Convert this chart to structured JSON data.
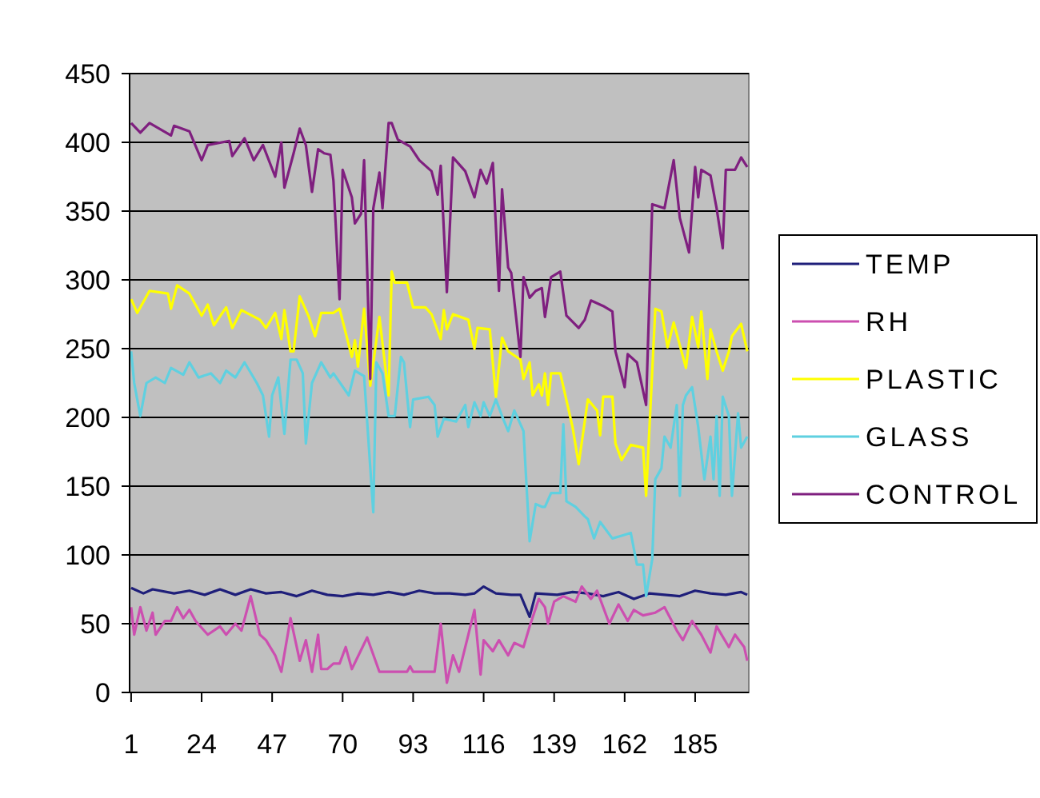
{
  "chart_data": {
    "type": "line",
    "xlim": [
      0.5,
      202.5
    ],
    "xticks": [
      1,
      24,
      47,
      70,
      93,
      116,
      139,
      162,
      185
    ],
    "ylim": [
      0,
      450
    ],
    "yticks": [
      0,
      50,
      100,
      150,
      200,
      250,
      300,
      350,
      400,
      450
    ],
    "grid": "y",
    "legend": "right",
    "marker": "none",
    "line_style": "solid",
    "series": [
      {
        "name": "TEMP",
        "color": "#1f1f7a",
        "x": [
          1,
          5,
          8,
          15,
          20,
          25,
          30,
          35,
          40,
          45,
          50,
          55,
          60,
          65,
          70,
          75,
          80,
          85,
          90,
          95,
          100,
          105,
          110,
          113,
          116,
          120,
          125,
          128,
          131,
          133,
          140,
          145,
          150,
          155,
          160,
          165,
          170,
          175,
          180,
          185,
          190,
          195,
          200,
          202
        ],
        "values": [
          76,
          72,
          75,
          72,
          74,
          71,
          75,
          71,
          75,
          72,
          73,
          70,
          74,
          71,
          70,
          72,
          71,
          73,
          71,
          74,
          72,
          72,
          71,
          72,
          77,
          72,
          71,
          71,
          55,
          72,
          71,
          73,
          72,
          70,
          73,
          68,
          72,
          71,
          70,
          74,
          72,
          71,
          73,
          71
        ]
      },
      {
        "name": "RH",
        "color": "#cc4fb0",
        "x": [
          1,
          2,
          4,
          6,
          8,
          9,
          12,
          14,
          16,
          18,
          20,
          22,
          26,
          30,
          32,
          35,
          37,
          40,
          43,
          45,
          48,
          50,
          53,
          56,
          58,
          60,
          62,
          63,
          65,
          67,
          69,
          71,
          73,
          78,
          82,
          91,
          92,
          93,
          100,
          102,
          104,
          106,
          108,
          111,
          113,
          115,
          116,
          119,
          121,
          124,
          126,
          129,
          131,
          134,
          136,
          137,
          139,
          142,
          146,
          148,
          151,
          153,
          157,
          160,
          163,
          165,
          168,
          172,
          175,
          179,
          181,
          184,
          187,
          190,
          192,
          196,
          198,
          201,
          202
        ],
        "values": [
          62,
          42,
          62,
          45,
          58,
          42,
          52,
          52,
          62,
          54,
          60,
          52,
          42,
          48,
          42,
          50,
          45,
          70,
          42,
          38,
          27,
          15,
          54,
          23,
          38,
          15,
          42,
          17,
          17,
          21,
          21,
          33,
          17,
          40,
          15,
          15,
          19,
          15,
          15,
          50,
          7,
          27,
          15,
          42,
          60,
          13,
          38,
          30,
          38,
          27,
          36,
          33,
          48,
          68,
          62,
          50,
          66,
          70,
          66,
          77,
          68,
          74,
          50,
          64,
          52,
          60,
          56,
          58,
          62,
          45,
          38,
          52,
          42,
          29,
          48,
          33,
          42,
          33,
          23
        ]
      },
      {
        "name": "PLASTIC",
        "color": "#ffff00",
        "x": [
          1,
          3,
          7,
          13,
          14,
          16,
          20,
          24,
          26,
          28,
          32,
          34,
          37,
          43,
          45,
          48,
          50,
          51,
          53,
          54,
          56,
          59,
          61,
          63,
          67,
          69,
          73,
          74,
          75,
          77,
          79,
          82,
          85,
          86,
          87,
          91,
          93,
          97,
          99,
          102,
          103,
          104,
          106,
          111,
          113,
          114,
          118,
          120,
          122,
          124,
          128,
          129,
          131,
          132,
          134,
          135,
          136,
          137,
          138,
          141,
          145,
          147,
          150,
          153,
          154,
          155,
          158,
          159,
          161,
          164,
          168,
          169,
          172,
          174,
          176,
          178,
          182,
          184,
          186,
          187,
          189,
          190,
          192,
          194,
          196,
          197,
          200,
          202
        ],
        "values": [
          286,
          276,
          292,
          290,
          279,
          296,
          290,
          274,
          282,
          267,
          280,
          265,
          278,
          271,
          265,
          276,
          257,
          278,
          248,
          248,
          288,
          273,
          259,
          276,
          276,
          279,
          244,
          256,
          237,
          279,
          223,
          273,
          216,
          306,
          298,
          298,
          280,
          280,
          275,
          257,
          278,
          264,
          275,
          271,
          250,
          265,
          264,
          215,
          258,
          248,
          242,
          228,
          240,
          216,
          224,
          216,
          232,
          209,
          232,
          232,
          193,
          166,
          213,
          205,
          187,
          215,
          215,
          181,
          169,
          180,
          178,
          143,
          279,
          277,
          251,
          269,
          236,
          273,
          251,
          277,
          228,
          264,
          248,
          234,
          248,
          259,
          268,
          248
        ]
      },
      {
        "name": "GLASS",
        "color": "#5fd0e0",
        "x": [
          1,
          2,
          4,
          6,
          9,
          12,
          14,
          18,
          20,
          23,
          27,
          30,
          32,
          35,
          38,
          42,
          44,
          46,
          47,
          49,
          51,
          53,
          55,
          57,
          58,
          60,
          63,
          66,
          67,
          72,
          74,
          77,
          80,
          81,
          83,
          85,
          87,
          89,
          90,
          92,
          93,
          98,
          100,
          101,
          103,
          107,
          110,
          111,
          113,
          115,
          116,
          118,
          120,
          122,
          124,
          126,
          129,
          131,
          133,
          135,
          136,
          138,
          141,
          142,
          143,
          146,
          149,
          150,
          152,
          154,
          158,
          161,
          164,
          166,
          168,
          169,
          171,
          172,
          174,
          175,
          177,
          179,
          180,
          181,
          182,
          184,
          186,
          188,
          190,
          191,
          192,
          193,
          194,
          196,
          197,
          199,
          200,
          202
        ],
        "values": [
          248,
          225,
          201,
          225,
          229,
          225,
          236,
          231,
          240,
          229,
          232,
          225,
          234,
          229,
          240,
          225,
          216,
          186,
          216,
          229,
          188,
          242,
          242,
          232,
          181,
          225,
          240,
          229,
          232,
          216,
          234,
          230,
          131,
          240,
          232,
          201,
          201,
          244,
          240,
          193,
          213,
          215,
          209,
          186,
          199,
          197,
          209,
          193,
          211,
          201,
          211,
          201,
          213,
          201,
          190,
          205,
          190,
          110,
          137,
          135,
          135,
          145,
          145,
          195,
          139,
          135,
          128,
          126,
          112,
          124,
          112,
          114,
          116,
          93,
          93,
          70,
          97,
          155,
          163,
          186,
          178,
          209,
          143,
          209,
          216,
          222,
          193,
          155,
          186,
          155,
          201,
          143,
          215,
          201,
          143,
          203,
          178,
          186
        ]
      },
      {
        "name": "CONTROL",
        "color": "#7f1f7f",
        "x": [
          1,
          4,
          7,
          14,
          15,
          20,
          24,
          26,
          33,
          34,
          38,
          41,
          44,
          48,
          50,
          51,
          54,
          56,
          58,
          60,
          62,
          64,
          66,
          67,
          69,
          70,
          73,
          74,
          76,
          77,
          79,
          80,
          82,
          83,
          85,
          86,
          88,
          92,
          95,
          99,
          101,
          102,
          104,
          106,
          110,
          113,
          115,
          117,
          119,
          121,
          122,
          124,
          125,
          128,
          129,
          131,
          133,
          135,
          136,
          138,
          141,
          143,
          147,
          149,
          151,
          155,
          158,
          159,
          162,
          163,
          166,
          169,
          171,
          175,
          178,
          180,
          183,
          185,
          186,
          187,
          190,
          192,
          194,
          195,
          198,
          200,
          202
        ],
        "values": [
          414,
          407,
          414,
          405,
          412,
          408,
          387,
          398,
          401,
          390,
          403,
          387,
          398,
          375,
          400,
          367,
          392,
          410,
          398,
          364,
          395,
          392,
          391,
          372,
          286,
          380,
          360,
          341,
          348,
          387,
          228,
          352,
          378,
          352,
          414,
          414,
          402,
          397,
          387,
          379,
          362,
          383,
          291,
          389,
          379,
          360,
          380,
          370,
          385,
          292,
          366,
          309,
          305,
          244,
          302,
          287,
          292,
          294,
          273,
          302,
          306,
          274,
          265,
          271,
          285,
          281,
          277,
          248,
          222,
          246,
          240,
          209,
          355,
          352,
          387,
          345,
          320,
          382,
          360,
          380,
          376,
          352,
          323,
          380,
          380,
          389,
          382
        ]
      }
    ]
  }
}
